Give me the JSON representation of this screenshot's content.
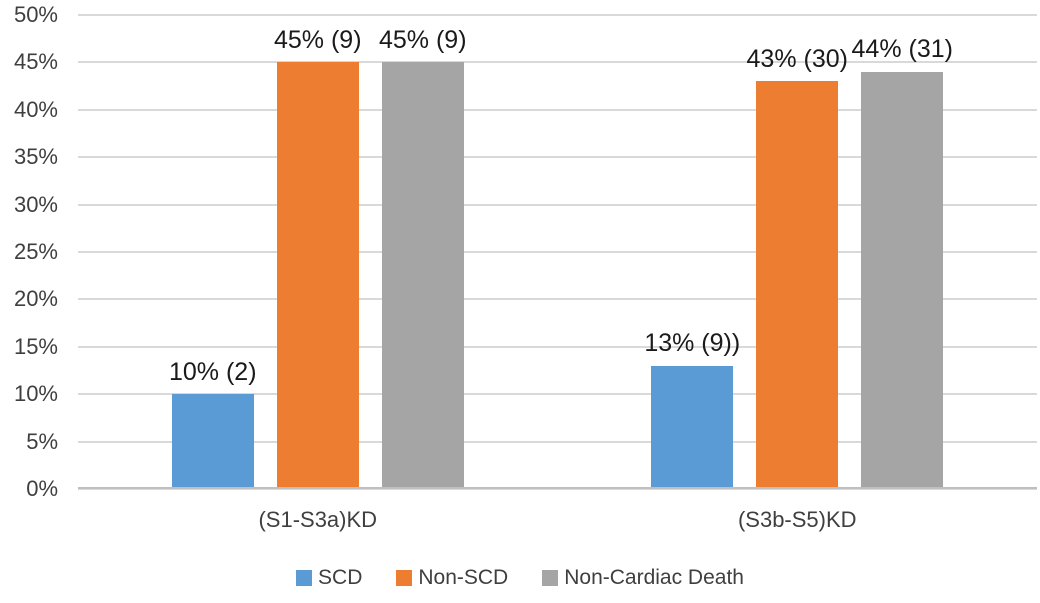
{
  "chart_data": {
    "type": "bar",
    "categories": [
      "(S1-S3a)KD",
      "(S3b-S5)KD"
    ],
    "series": [
      {
        "name": "SCD",
        "color": "#5B9BD5",
        "values": [
          10,
          13
        ],
        "labels": [
          "10% (2)",
          "13% (9))"
        ]
      },
      {
        "name": "Non-SCD",
        "color": "#ED7D31",
        "values": [
          45,
          43
        ],
        "labels": [
          "45% (9)",
          "43% (30)"
        ]
      },
      {
        "name": "Non-Cardiac Death",
        "color": "#A5A5A5",
        "values": [
          45,
          44
        ],
        "labels": [
          "45% (9)",
          "44% (31)"
        ]
      }
    ],
    "title": "",
    "xlabel": "",
    "ylabel": "",
    "ylim": [
      0,
      50
    ],
    "y_ticks": [
      "0%",
      "5%",
      "10%",
      "15%",
      "20%",
      "25%",
      "30%",
      "35%",
      "40%",
      "45%",
      "50%"
    ],
    "grid": true,
    "legend_position": "bottom"
  },
  "colors": {
    "gridline": "#D9D9D9",
    "baseline": "#BFBFBF",
    "axis_text": "#3F3F3F",
    "data_label_text": "#1A1A1A",
    "background": "#FFFFFF"
  }
}
